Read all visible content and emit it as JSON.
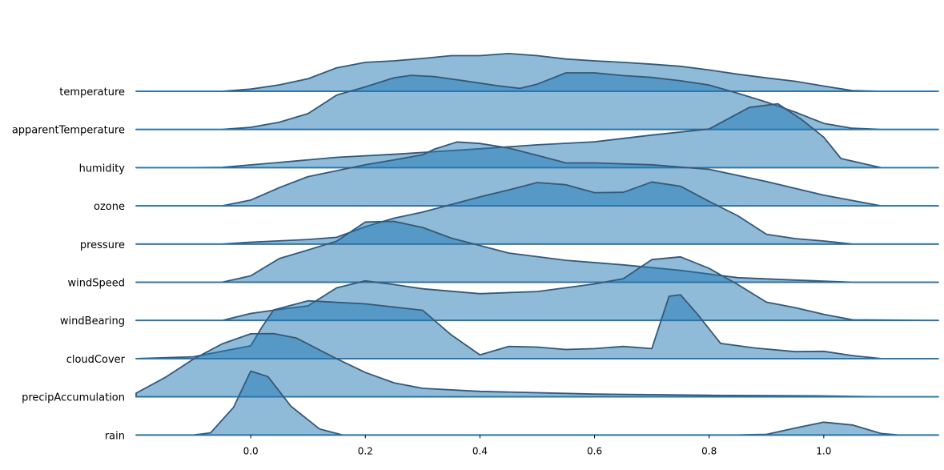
{
  "chart_data": {
    "type": "ridgeline",
    "xlim": [
      -0.2,
      1.2
    ],
    "xticks": [
      0.0,
      0.2,
      0.4,
      0.6,
      0.8,
      1.0
    ],
    "xtick_labels": [
      "0.0",
      "0.2",
      "0.4",
      "0.6",
      "0.8",
      "1.0"
    ],
    "grid": false,
    "legend": "none",
    "colors": {
      "fill": "#1f77b4",
      "edge": "#3b5670"
    },
    "series": [
      {
        "name": "temperature",
        "points": [
          [
            -0.2,
            0
          ],
          [
            -0.05,
            0
          ],
          [
            0.0,
            0.07
          ],
          [
            0.05,
            0.21
          ],
          [
            0.1,
            0.41
          ],
          [
            0.15,
            0.77
          ],
          [
            0.2,
            0.95
          ],
          [
            0.25,
            1.0
          ],
          [
            0.3,
            1.08
          ],
          [
            0.35,
            1.17
          ],
          [
            0.4,
            1.17
          ],
          [
            0.45,
            1.24
          ],
          [
            0.5,
            1.17
          ],
          [
            0.55,
            1.06
          ],
          [
            0.6,
            1.0
          ],
          [
            0.65,
            0.95
          ],
          [
            0.7,
            0.89
          ],
          [
            0.75,
            0.82
          ],
          [
            0.8,
            0.7
          ],
          [
            0.85,
            0.56
          ],
          [
            0.9,
            0.44
          ],
          [
            0.95,
            0.33
          ],
          [
            1.0,
            0.17
          ],
          [
            1.05,
            0.02
          ],
          [
            1.1,
            0
          ],
          [
            1.2,
            0
          ]
        ]
      },
      {
        "name": "apparentTemperature",
        "points": [
          [
            -0.2,
            0
          ],
          [
            -0.05,
            0
          ],
          [
            0.0,
            0.07
          ],
          [
            0.05,
            0.24
          ],
          [
            0.1,
            0.52
          ],
          [
            0.15,
            1.13
          ],
          [
            0.2,
            1.4
          ],
          [
            0.25,
            1.7
          ],
          [
            0.28,
            1.78
          ],
          [
            0.32,
            1.74
          ],
          [
            0.38,
            1.58
          ],
          [
            0.43,
            1.44
          ],
          [
            0.47,
            1.35
          ],
          [
            0.5,
            1.49
          ],
          [
            0.55,
            1.86
          ],
          [
            0.6,
            1.86
          ],
          [
            0.65,
            1.77
          ],
          [
            0.7,
            1.71
          ],
          [
            0.75,
            1.6
          ],
          [
            0.8,
            1.46
          ],
          [
            0.85,
            1.19
          ],
          [
            0.9,
            0.9
          ],
          [
            0.95,
            0.57
          ],
          [
            1.0,
            0.2
          ],
          [
            1.05,
            0.04
          ],
          [
            1.1,
            0
          ],
          [
            1.2,
            0
          ]
        ]
      },
      {
        "name": "humidity",
        "points": [
          [
            -0.2,
            0
          ],
          [
            -0.1,
            0
          ],
          [
            -0.05,
            0.01
          ],
          [
            0.05,
            0.17
          ],
          [
            0.15,
            0.34
          ],
          [
            0.25,
            0.44
          ],
          [
            0.3,
            0.5
          ],
          [
            0.4,
            0.62
          ],
          [
            0.5,
            0.75
          ],
          [
            0.6,
            0.85
          ],
          [
            0.7,
            1.07
          ],
          [
            0.8,
            1.27
          ],
          [
            0.87,
            1.98
          ],
          [
            0.92,
            2.1
          ],
          [
            0.96,
            1.6
          ],
          [
            1.0,
            1.0
          ],
          [
            1.03,
            0.3
          ],
          [
            1.1,
            0
          ],
          [
            1.2,
            0
          ]
        ]
      },
      {
        "name": "ozone",
        "points": [
          [
            -0.2,
            0
          ],
          [
            -0.05,
            0
          ],
          [
            0.0,
            0.19
          ],
          [
            0.05,
            0.6
          ],
          [
            0.1,
            0.96
          ],
          [
            0.2,
            1.35
          ],
          [
            0.25,
            1.51
          ],
          [
            0.3,
            1.68
          ],
          [
            0.32,
            1.86
          ],
          [
            0.36,
            2.1
          ],
          [
            0.4,
            2.05
          ],
          [
            0.45,
            1.9
          ],
          [
            0.5,
            1.66
          ],
          [
            0.55,
            1.41
          ],
          [
            0.6,
            1.41
          ],
          [
            0.7,
            1.35
          ],
          [
            0.8,
            1.2
          ],
          [
            0.9,
            0.8
          ],
          [
            1.0,
            0.35
          ],
          [
            1.1,
            0
          ],
          [
            1.2,
            0
          ]
        ]
      },
      {
        "name": "pressure",
        "points": [
          [
            -0.2,
            0
          ],
          [
            -0.05,
            0
          ],
          [
            0.0,
            0.06
          ],
          [
            0.1,
            0.15
          ],
          [
            0.15,
            0.22
          ],
          [
            0.2,
            0.57
          ],
          [
            0.25,
            0.85
          ],
          [
            0.3,
            1.05
          ],
          [
            0.4,
            1.55
          ],
          [
            0.45,
            1.78
          ],
          [
            0.5,
            2.02
          ],
          [
            0.55,
            1.95
          ],
          [
            0.6,
            1.69
          ],
          [
            0.65,
            1.7
          ],
          [
            0.7,
            2.04
          ],
          [
            0.75,
            1.9
          ],
          [
            0.8,
            1.4
          ],
          [
            0.85,
            0.93
          ],
          [
            0.9,
            0.32
          ],
          [
            0.95,
            0.18
          ],
          [
            1.0,
            0.1
          ],
          [
            1.05,
            0.0
          ],
          [
            1.2,
            0
          ]
        ]
      },
      {
        "name": "windSpeed",
        "points": [
          [
            -0.2,
            0
          ],
          [
            -0.05,
            0
          ],
          [
            0.0,
            0.21
          ],
          [
            0.05,
            0.78
          ],
          [
            0.1,
            1.06
          ],
          [
            0.15,
            1.35
          ],
          [
            0.2,
            1.98
          ],
          [
            0.25,
            2.0
          ],
          [
            0.3,
            1.8
          ],
          [
            0.35,
            1.45
          ],
          [
            0.45,
            0.96
          ],
          [
            0.55,
            0.72
          ],
          [
            0.65,
            0.57
          ],
          [
            0.75,
            0.39
          ],
          [
            0.85,
            0.15
          ],
          [
            0.95,
            0.07
          ],
          [
            1.05,
            0.0
          ],
          [
            1.2,
            0
          ]
        ]
      },
      {
        "name": "windBearing",
        "points": [
          [
            -0.2,
            0
          ],
          [
            -0.05,
            0
          ],
          [
            0.0,
            0.23
          ],
          [
            0.05,
            0.36
          ],
          [
            0.1,
            0.48
          ],
          [
            0.15,
            1.07
          ],
          [
            0.2,
            1.3
          ],
          [
            0.25,
            1.18
          ],
          [
            0.3,
            1.04
          ],
          [
            0.4,
            0.88
          ],
          [
            0.5,
            0.95
          ],
          [
            0.6,
            1.2
          ],
          [
            0.65,
            1.37
          ],
          [
            0.7,
            2.0
          ],
          [
            0.75,
            2.09
          ],
          [
            0.8,
            1.71
          ],
          [
            0.85,
            1.18
          ],
          [
            0.9,
            0.6
          ],
          [
            0.95,
            0.42
          ],
          [
            1.0,
            0.2
          ],
          [
            1.05,
            0.02
          ],
          [
            1.2,
            0
          ]
        ]
      },
      {
        "name": "cloudCover",
        "points": [
          [
            -0.2,
            0
          ],
          [
            -0.1,
            0.06
          ],
          [
            0.0,
            0.42
          ],
          [
            0.02,
            1.05
          ],
          [
            0.04,
            1.6
          ],
          [
            0.1,
            1.9
          ],
          [
            0.2,
            1.8
          ],
          [
            0.3,
            1.59
          ],
          [
            0.35,
            0.78
          ],
          [
            0.4,
            0.12
          ],
          [
            0.45,
            0.4
          ],
          [
            0.5,
            0.38
          ],
          [
            0.55,
            0.3
          ],
          [
            0.6,
            0.33
          ],
          [
            0.65,
            0.4
          ],
          [
            0.7,
            0.33
          ],
          [
            0.73,
            2.05
          ],
          [
            0.75,
            2.1
          ],
          [
            0.78,
            1.45
          ],
          [
            0.82,
            0.5
          ],
          [
            0.88,
            0.35
          ],
          [
            0.95,
            0.23
          ],
          [
            1.0,
            0.24
          ],
          [
            1.05,
            0.1
          ],
          [
            1.1,
            0
          ],
          [
            1.2,
            0
          ]
        ]
      },
      {
        "name": "precipAccumulation",
        "points": [
          [
            -0.2,
            0.12
          ],
          [
            -0.15,
            0.63
          ],
          [
            -0.1,
            1.24
          ],
          [
            -0.05,
            1.74
          ],
          [
            0.0,
            2.07
          ],
          [
            0.04,
            2.08
          ],
          [
            0.08,
            1.93
          ],
          [
            0.15,
            1.25
          ],
          [
            0.2,
            0.8
          ],
          [
            0.25,
            0.46
          ],
          [
            0.3,
            0.28
          ],
          [
            0.4,
            0.18
          ],
          [
            0.6,
            0.09
          ],
          [
            0.8,
            0.05
          ],
          [
            1.0,
            0.03
          ],
          [
            1.1,
            0.0
          ],
          [
            1.2,
            0
          ]
        ]
      },
      {
        "name": "rain",
        "points": [
          [
            -0.2,
            0
          ],
          [
            -0.1,
            0
          ],
          [
            -0.07,
            0.07
          ],
          [
            -0.03,
            0.91
          ],
          [
            0.0,
            2.1
          ],
          [
            0.03,
            1.92
          ],
          [
            0.07,
            0.95
          ],
          [
            0.12,
            0.2
          ],
          [
            0.16,
            0
          ],
          [
            0.85,
            0
          ],
          [
            0.9,
            0.02
          ],
          [
            0.95,
            0.23
          ],
          [
            1.0,
            0.42
          ],
          [
            1.05,
            0.33
          ],
          [
            1.1,
            0.05
          ],
          [
            1.13,
            0
          ],
          [
            1.2,
            0
          ]
        ]
      }
    ]
  }
}
